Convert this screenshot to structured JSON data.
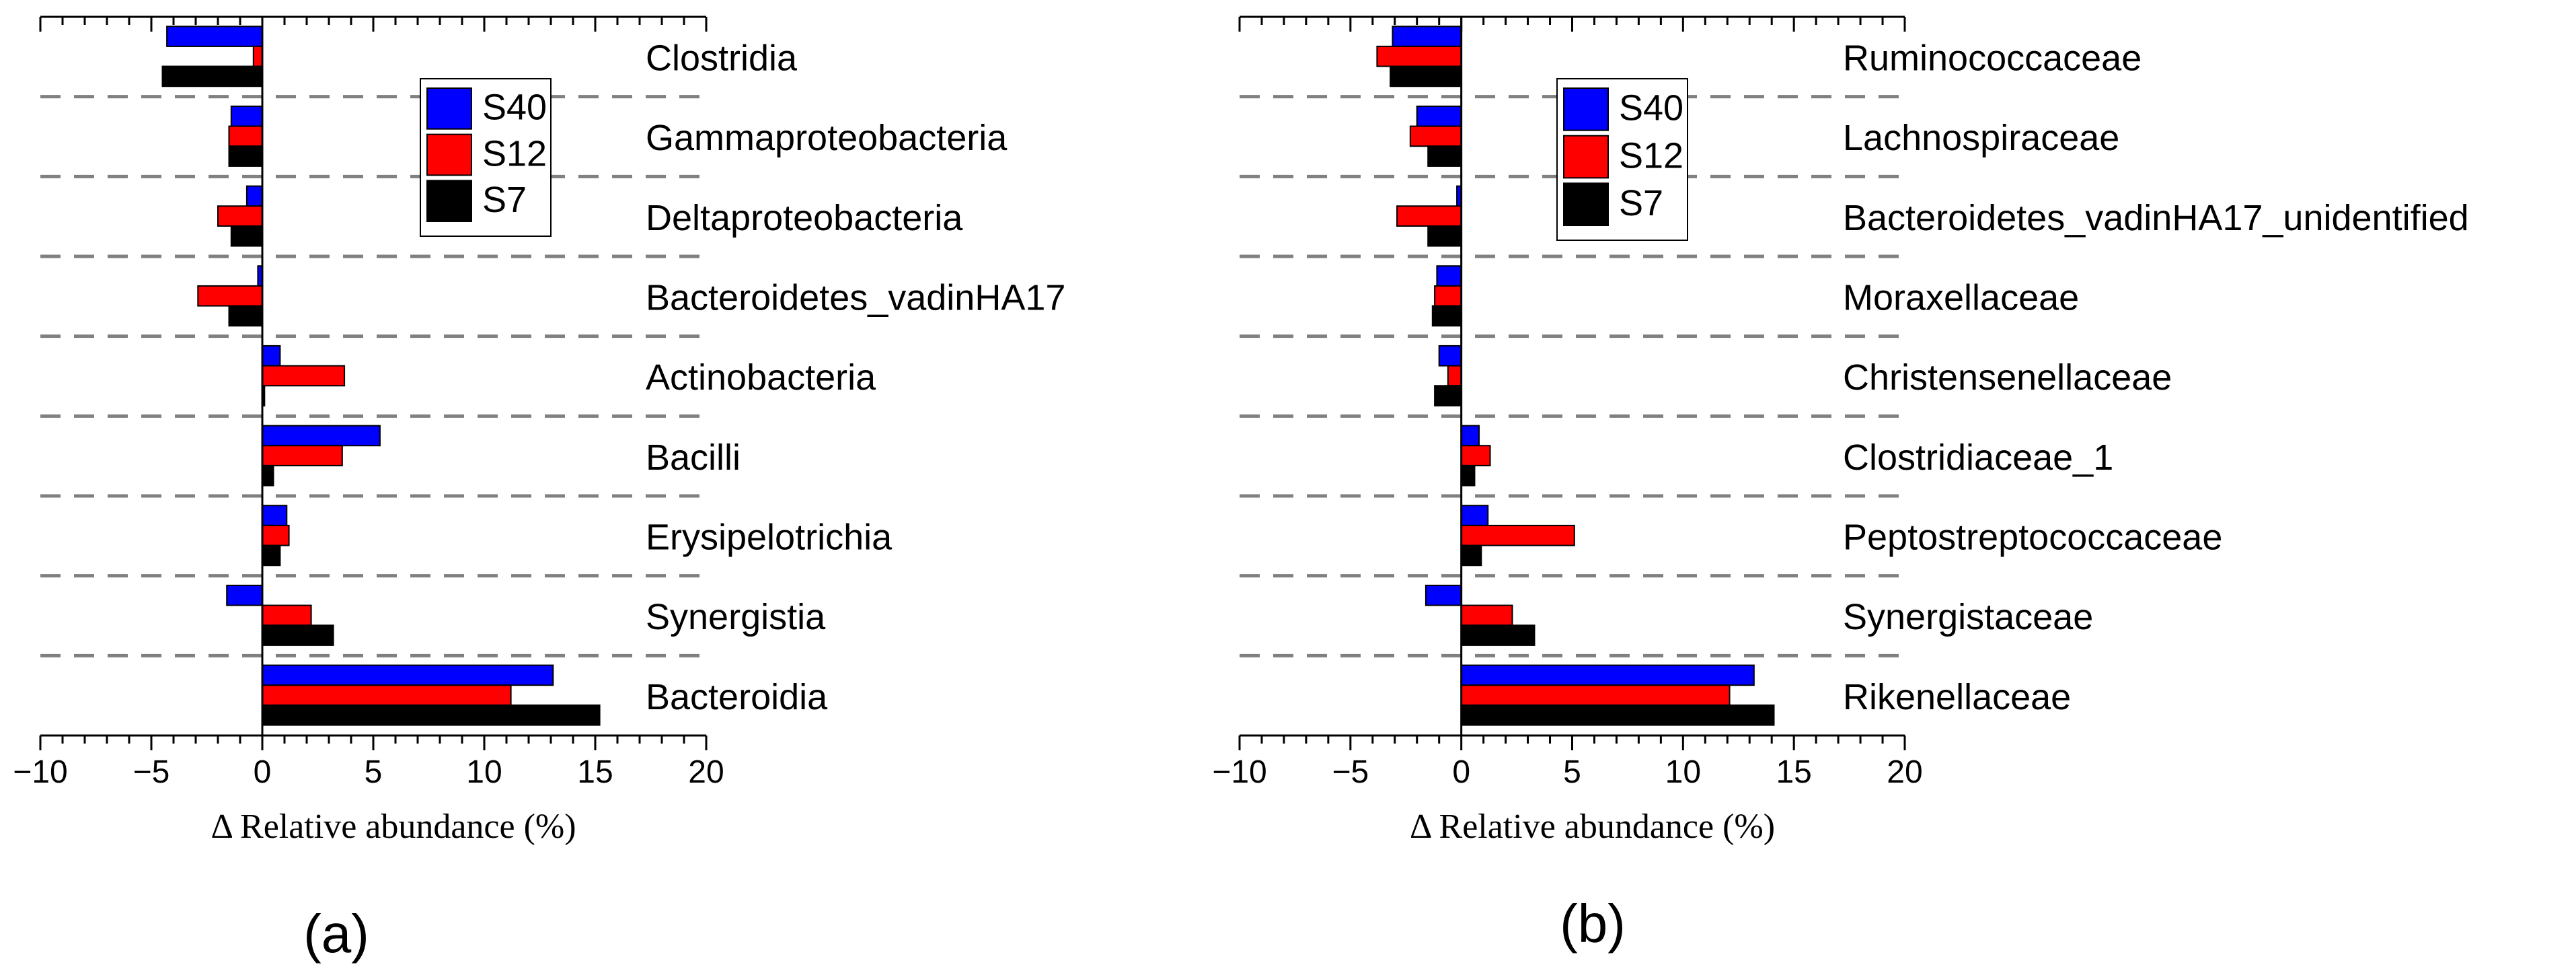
{
  "colors": {
    "S40": "#0000ff",
    "S12": "#ff0000",
    "S7": "#000000",
    "divider": "#808080"
  },
  "chart_data": [
    {
      "type": "bar",
      "orientation": "horizontal",
      "panel_label": "(a)",
      "xlabel": "Δ Relative abundance (%)",
      "xlim": [
        -10,
        20
      ],
      "xticks": [
        -10,
        -5,
        0,
        5,
        10,
        15,
        20
      ],
      "xtick_labels": [
        "−10",
        "−5",
        "0",
        "5",
        "10",
        "15",
        "20"
      ],
      "legend": [
        "S40",
        "S12",
        "S7"
      ],
      "legend_position": "top-right",
      "categories": [
        "Clostridia",
        "Gammaproteobacteria",
        "Deltaproteobacteria",
        "Bacteroidetes_vadinHA17",
        "Actinobacteria",
        "Bacilli",
        "Erysipelotrichia",
        "Synergistia",
        "Bacteroidia"
      ],
      "series": [
        {
          "name": "S40",
          "values": [
            -4.3,
            -1.4,
            -0.7,
            -0.2,
            0.8,
            5.3,
            1.1,
            -1.6,
            13.1
          ]
        },
        {
          "name": "S12",
          "values": [
            -0.4,
            -1.5,
            -2.0,
            -2.9,
            3.7,
            3.6,
            1.2,
            2.2,
            11.2
          ]
        },
        {
          "name": "S7",
          "values": [
            -4.5,
            -1.5,
            -1.4,
            -1.5,
            0.1,
            0.5,
            0.8,
            3.2,
            15.2
          ]
        }
      ]
    },
    {
      "type": "bar",
      "orientation": "horizontal",
      "panel_label": "(b)",
      "xlabel": "Δ Relative abundance (%)",
      "xlim": [
        -10,
        20
      ],
      "xticks": [
        -10,
        -5,
        0,
        5,
        10,
        15,
        20
      ],
      "xtick_labels": [
        "−10",
        "−5",
        "0",
        "5",
        "10",
        "15",
        "20"
      ],
      "legend": [
        "S40",
        "S12",
        "S7"
      ],
      "legend_position": "top-right",
      "categories": [
        "Ruminococcaceae",
        "Lachnospiraceae",
        "Bacteroidetes_vadinHA17_unidentified",
        "Moraxellaceae",
        "Christensenellaceae",
        "Clostridiaceae_1",
        "Peptostreptococcaceae",
        "Synergistaceae",
        "Rikenellaceae"
      ],
      "series": [
        {
          "name": "S40",
          "values": [
            -3.1,
            -2.0,
            -0.2,
            -1.1,
            -1.0,
            0.8,
            1.2,
            -1.6,
            13.2
          ]
        },
        {
          "name": "S12",
          "values": [
            -3.8,
            -2.3,
            -2.9,
            -1.2,
            -0.6,
            1.3,
            5.1,
            2.3,
            12.1
          ]
        },
        {
          "name": "S7",
          "values": [
            -3.2,
            -1.5,
            -1.5,
            -1.3,
            -1.2,
            0.6,
            0.9,
            3.3,
            14.1
          ]
        }
      ]
    }
  ]
}
